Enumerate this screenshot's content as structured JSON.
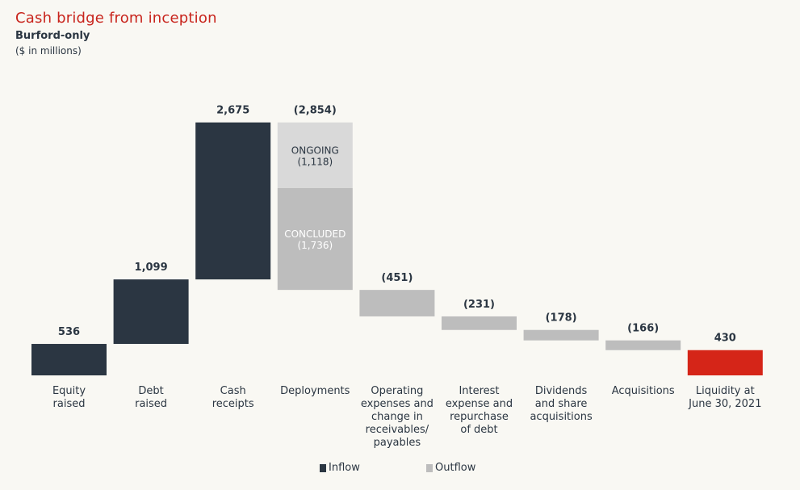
{
  "header": {
    "title": "Cash bridge from inception",
    "subtitle": "Burford-only",
    "units": "($ in millions)"
  },
  "colors": {
    "inflow": "#2b3642",
    "outflow": "#bdbdbd",
    "ongoing": "#d9d9d9",
    "liquidity": "#d52518",
    "text": "#2b3642",
    "title": "#c8241c"
  },
  "legend": [
    {
      "label": "Inflow",
      "color": "#2b3642"
    },
    {
      "label": "Outflow",
      "color": "#bdbdbd"
    }
  ],
  "chart_data": {
    "type": "bar",
    "subtype": "waterfall",
    "title": "Cash bridge from inception",
    "subtitle": "Burford-only",
    "unit": "($ in millions)",
    "categories": [
      [
        "Equity",
        "raised"
      ],
      [
        "Debt",
        "raised"
      ],
      [
        "Cash",
        "receipts"
      ],
      [
        "Deployments"
      ],
      [
        "Operating",
        "expenses and",
        "change in",
        "receivables/",
        "payables"
      ],
      [
        "Interest",
        "expense and",
        "repurchase",
        "of debt"
      ],
      [
        "Dividends",
        "and share",
        "acquisitions"
      ],
      [
        "Acquisitions"
      ],
      [
        "Liquidity at",
        "June 30, 2021"
      ]
    ],
    "values": [
      536,
      1099,
      2675,
      -2854,
      -451,
      -231,
      -178,
      -166,
      430
    ],
    "value_labels": [
      "536",
      "1,099",
      "2,675",
      "(2,854)",
      "(451)",
      "(231)",
      "(178)",
      "(166)",
      "430"
    ],
    "kinds": [
      "inflow",
      "inflow",
      "inflow",
      "outflow",
      "outflow",
      "outflow",
      "outflow",
      "outflow",
      "total"
    ],
    "deployments_breakdown": [
      {
        "label": "ONGOING",
        "value_label": "(1,118)",
        "value": -1118
      },
      {
        "label": "CONCLUDED",
        "value_label": "(1,736)",
        "value": -1736
      }
    ],
    "legend": [
      "Inflow",
      "Outflow"
    ],
    "ylim": [
      0,
      4310
    ]
  }
}
